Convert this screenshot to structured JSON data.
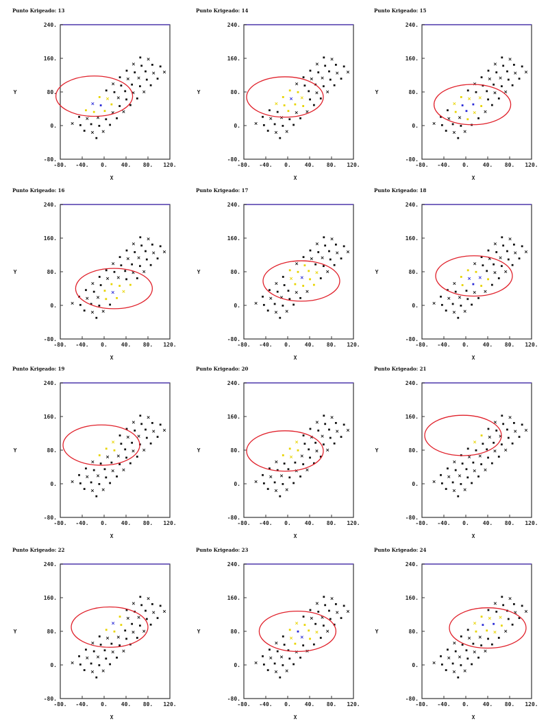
{
  "figure": {
    "x_label": "X",
    "y_label": "Y",
    "x_ticks": [
      "-80.",
      "-40.",
      "0.",
      "40.",
      "80.",
      "120."
    ],
    "y_ticks": [
      "-80.",
      "0.",
      "80.",
      "160.",
      "240."
    ],
    "colors": {
      "ellipse": "#e0202a",
      "frame": "#333333",
      "frame_top": "#5a44b8",
      "point_black": "#111111",
      "point_yellow": "#e8d400",
      "point_blue": "#2a2ad8"
    }
  },
  "chart_data": [
    {
      "type": "scatter",
      "title": "Punto Krigeado: 13",
      "xlim": [
        -80,
        120
      ],
      "ylim": [
        -80,
        240
      ],
      "ellipse": {
        "cx": -18,
        "cy": 70,
        "rx": 70,
        "ry": 48,
        "angle": 0
      },
      "highlight": {
        "x": -10,
        "y": 55
      }
    },
    {
      "type": "scatter",
      "title": "Punto Krigeado: 14",
      "xlim": [
        -80,
        120
      ],
      "ylim": [
        -80,
        240
      ],
      "ellipse": {
        "cx": -5,
        "cy": 68,
        "rx": 70,
        "ry": 48,
        "angle": 0
      },
      "highlight": {
        "x": 2,
        "y": 60
      }
    },
    {
      "type": "scatter",
      "title": "Punto Krigeado: 15",
      "xlim": [
        -80,
        120
      ],
      "ylim": [
        -80,
        240
      ],
      "ellipse": {
        "cx": 12,
        "cy": 50,
        "rx": 70,
        "ry": 48,
        "angle": 0
      },
      "highlight": {
        "x": 5,
        "y": 45
      }
    },
    {
      "type": "scatter",
      "title": "Punto Krigeado: 16",
      "xlim": [
        -80,
        120
      ],
      "ylim": [
        -80,
        240
      ],
      "ellipse": {
        "cx": 18,
        "cy": 40,
        "rx": 70,
        "ry": 48,
        "angle": 0
      },
      "highlight": {
        "x": 22,
        "y": 35
      }
    },
    {
      "type": "scatter",
      "title": "Punto Krigeado: 17",
      "xlim": [
        -80,
        120
      ],
      "ylim": [
        -80,
        240
      ],
      "ellipse": {
        "cx": 25,
        "cy": 58,
        "rx": 70,
        "ry": 48,
        "angle": 0
      },
      "highlight": {
        "x": 30,
        "y": 70
      }
    },
    {
      "type": "scatter",
      "title": "Punto Krigeado: 18",
      "xlim": [
        -80,
        120
      ],
      "ylim": [
        -80,
        240
      ],
      "ellipse": {
        "cx": 15,
        "cy": 70,
        "rx": 70,
        "ry": 48,
        "angle": 0
      },
      "highlight": {
        "x": 15,
        "y": 62
      }
    },
    {
      "type": "scatter",
      "title": "Punto Krigeado: 19",
      "xlim": [
        -80,
        120
      ],
      "ylim": [
        -80,
        240
      ],
      "ellipse": {
        "cx": -5,
        "cy": 92,
        "rx": 70,
        "ry": 48,
        "angle": 0
      },
      "highlight": {
        "x": 0,
        "y": 95
      }
    },
    {
      "type": "scatter",
      "title": "Punto Krigeado: 20",
      "xlim": [
        -80,
        120
      ],
      "ylim": [
        -80,
        240
      ],
      "ellipse": {
        "cx": -5,
        "cy": 78,
        "rx": 70,
        "ry": 48,
        "angle": 0
      },
      "highlight": {
        "x": -8,
        "y": 88
      }
    },
    {
      "type": "scatter",
      "title": "Punto Krigeado: 21",
      "xlim": [
        -80,
        120
      ],
      "ylim": [
        -80,
        240
      ],
      "ellipse": {
        "cx": -5,
        "cy": 115,
        "rx": 70,
        "ry": 48,
        "angle": 0
      },
      "highlight": {
        "x": 0,
        "y": 118
      }
    },
    {
      "type": "scatter",
      "title": "Punto Krigeado: 22",
      "xlim": [
        -80,
        120
      ],
      "ylim": [
        -80,
        240
      ],
      "ellipse": {
        "cx": 10,
        "cy": 90,
        "rx": 70,
        "ry": 48,
        "angle": 0
      },
      "highlight": {
        "x": 5,
        "y": 102
      }
    },
    {
      "type": "scatter",
      "title": "Punto Krigeado: 23",
      "xlim": [
        -80,
        120
      ],
      "ylim": [
        -80,
        240
      ],
      "ellipse": {
        "cx": 18,
        "cy": 80,
        "rx": 70,
        "ry": 48,
        "angle": 0
      },
      "highlight": {
        "x": 25,
        "y": 78
      }
    },
    {
      "type": "scatter",
      "title": "Punto Krigeado: 24",
      "xlim": [
        -80,
        120
      ],
      "ylim": [
        -80,
        240
      ],
      "ellipse": {
        "cx": 40,
        "cy": 88,
        "rx": 70,
        "ry": 48,
        "angle": 0
      },
      "highlight": {
        "x": 42,
        "y": 98
      }
    }
  ]
}
